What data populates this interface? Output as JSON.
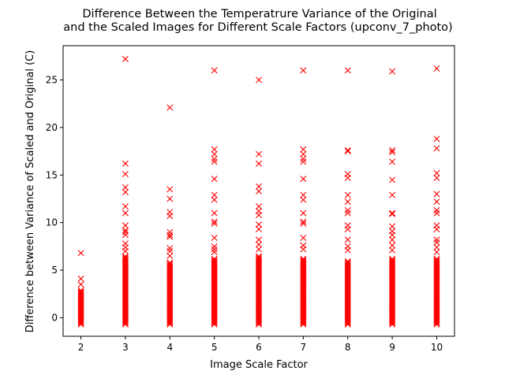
{
  "chart_data": {
    "type": "scatter",
    "title_line1": "Difference Between the Temperatrure Variance of the Original",
    "title_line2": "and the Scaled Images for Different Scale Factors (upconv_7_photo)",
    "xlabel": "Image Scale Factor",
    "ylabel": "Difference between Variance of Scaled and Original (C)",
    "xlim": [
      1.6,
      10.4
    ],
    "ylim": [
      -1.95,
      28.6
    ],
    "x_ticks": [
      2,
      3,
      4,
      5,
      6,
      7,
      8,
      9,
      10
    ],
    "y_ticks": [
      0,
      5,
      10,
      15,
      20,
      25
    ],
    "marker": "x",
    "marker_color": "#ff0000",
    "grid": false,
    "dense_band": [
      {
        "x": 2,
        "low": -0.7,
        "high": 3.0
      },
      {
        "x": 3,
        "low": -0.7,
        "high": 6.5
      },
      {
        "x": 4,
        "low": -0.7,
        "high": 5.8
      },
      {
        "x": 5,
        "low": -0.7,
        "high": 6.2
      },
      {
        "x": 6,
        "low": -0.7,
        "high": 6.5
      },
      {
        "x": 7,
        "low": -0.7,
        "high": 6.2
      },
      {
        "x": 8,
        "low": -0.7,
        "high": 6.0
      },
      {
        "x": 9,
        "low": -0.7,
        "high": 6.2
      },
      {
        "x": 10,
        "low": -0.7,
        "high": 6.3
      }
    ],
    "points": [
      {
        "x": 2,
        "ys": [
          6.8,
          4.1,
          3.5
        ]
      },
      {
        "x": 3,
        "ys": [
          27.2,
          16.2,
          15.1,
          13.7,
          13.2,
          11.7,
          11.0,
          9.7,
          9.2,
          9.0,
          8.7,
          7.8,
          7.4,
          7.0
        ]
      },
      {
        "x": 4,
        "ys": [
          22.1,
          13.5,
          12.5,
          11.1,
          10.7,
          9.0,
          8.7,
          8.5,
          7.3,
          7.0,
          6.5
        ]
      },
      {
        "x": 5,
        "ys": [
          26.0,
          17.7,
          17.2,
          16.7,
          16.4,
          14.6,
          12.9,
          12.4,
          11.0,
          10.1,
          9.9,
          8.4,
          7.5,
          7.2,
          6.9
        ]
      },
      {
        "x": 6,
        "ys": [
          25.0,
          17.2,
          16.2,
          13.8,
          13.3,
          11.7,
          11.2,
          10.8,
          9.8,
          9.3,
          8.2,
          7.7,
          7.2
        ]
      },
      {
        "x": 7,
        "ys": [
          26.0,
          17.7,
          17.2,
          16.7,
          16.4,
          14.6,
          12.9,
          12.4,
          11.0,
          10.1,
          9.9,
          8.4,
          7.6,
          7.2
        ]
      },
      {
        "x": 8,
        "ys": [
          26.0,
          17.6,
          17.5,
          15.1,
          14.7,
          12.9,
          12.2,
          11.3,
          11.0,
          9.7,
          9.3,
          8.2,
          7.5,
          7.1
        ]
      },
      {
        "x": 9,
        "ys": [
          25.9,
          17.6,
          17.4,
          16.4,
          14.5,
          12.9,
          11.0,
          10.9,
          9.6,
          9.1,
          8.7,
          8.2,
          7.6,
          7.1
        ]
      },
      {
        "x": 10,
        "ys": [
          26.2,
          18.8,
          17.8,
          15.2,
          14.7,
          13.0,
          12.2,
          11.3,
          11.0,
          9.7,
          9.3,
          8.2,
          7.9,
          7.4,
          6.9
        ]
      }
    ]
  }
}
